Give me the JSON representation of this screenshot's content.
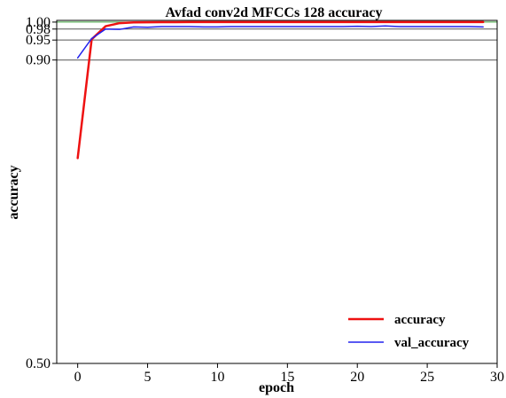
{
  "chart_data": {
    "type": "line",
    "title": "Avfad conv2d MFCCs 128 accuracy",
    "xlabel": "epoch",
    "ylabel": "accuracy",
    "xlim": [
      -1.5,
      30
    ],
    "ylim": [
      0.5,
      1.005
    ],
    "y_scale": "reciprocal",
    "x_ticks": [
      0,
      5,
      10,
      15,
      20,
      25,
      30
    ],
    "y_ticks": [
      0.5,
      0.9,
      0.95,
      0.98,
      1.0
    ],
    "y_tick_labels": [
      "0.50",
      "0.90",
      "0.95",
      "0.98",
      "1.00"
    ],
    "hlines": [
      {
        "y": 1.0,
        "color": "#3aa03a"
      },
      {
        "y": 0.98,
        "color": "#555555"
      },
      {
        "y": 0.95,
        "color": "#555555"
      },
      {
        "y": 0.9,
        "color": "#555555"
      }
    ],
    "legend_position": "lower-right",
    "x": [
      0,
      1,
      2,
      3,
      4,
      5,
      6,
      7,
      8,
      9,
      10,
      11,
      12,
      13,
      14,
      15,
      16,
      17,
      18,
      19,
      20,
      21,
      22,
      23,
      24,
      25,
      26,
      27,
      28,
      29
    ],
    "series": [
      {
        "name": "accuracy",
        "color": "#ee1111",
        "width": 2.5,
        "values": [
          0.715,
          0.952,
          0.988,
          0.997,
          0.999,
          0.9995,
          0.9998,
          0.9999,
          1.0,
          1.0,
          1.0,
          1.0,
          1.0,
          1.0,
          1.0,
          1.0,
          1.0,
          1.0,
          1.0,
          1.0,
          1.0,
          1.0,
          1.0,
          1.0,
          1.0,
          1.0,
          1.0,
          1.0,
          1.0,
          1.0
        ]
      },
      {
        "name": "val_accuracy",
        "color": "#2222ee",
        "width": 1.5,
        "values": [
          0.905,
          0.954,
          0.98,
          0.979,
          0.986,
          0.985,
          0.987,
          0.987,
          0.987,
          0.986,
          0.986,
          0.987,
          0.987,
          0.987,
          0.987,
          0.987,
          0.987,
          0.987,
          0.987,
          0.987,
          0.988,
          0.987,
          0.989,
          0.987,
          0.987,
          0.987,
          0.987,
          0.987,
          0.987,
          0.986
        ]
      }
    ]
  }
}
